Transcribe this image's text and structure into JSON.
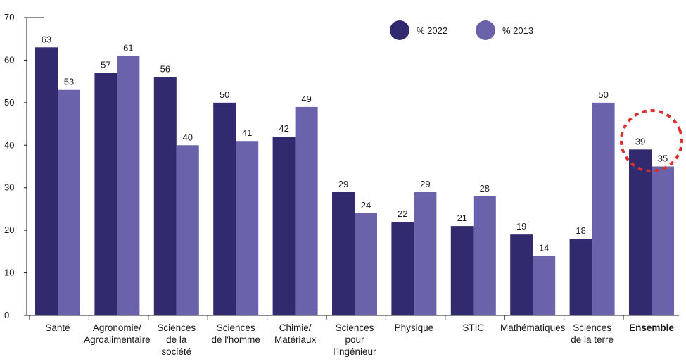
{
  "chart_data": {
    "type": "bar",
    "title": "",
    "xlabel": "",
    "ylabel": "",
    "ylim": [
      0,
      70
    ],
    "yticks": [
      0,
      10,
      20,
      30,
      40,
      50,
      60,
      70
    ],
    "legend_position": "top-right",
    "grid": false,
    "categories": [
      {
        "lines": [
          "Santé"
        ],
        "bold": false
      },
      {
        "lines": [
          "Agronomie/",
          "Agroalimentaire"
        ],
        "bold": false
      },
      {
        "lines": [
          "Sciences",
          "de la",
          "société"
        ],
        "bold": false
      },
      {
        "lines": [
          "Sciences",
          "de l'homme"
        ],
        "bold": false
      },
      {
        "lines": [
          "Chimie/",
          "Matériaux"
        ],
        "bold": false
      },
      {
        "lines": [
          "Sciences",
          "pour",
          "l'ingénieur"
        ],
        "bold": false
      },
      {
        "lines": [
          "Physique"
        ],
        "bold": false
      },
      {
        "lines": [
          "STIC"
        ],
        "bold": false
      },
      {
        "lines": [
          "Mathématiques"
        ],
        "bold": false
      },
      {
        "lines": [
          "Sciences",
          "de la terre"
        ],
        "bold": false
      },
      {
        "lines": [
          "Ensemble"
        ],
        "bold": true
      }
    ],
    "series": [
      {
        "name": "% 2022",
        "color": "#312a6f",
        "values": [
          63,
          57,
          56,
          50,
          42,
          29,
          22,
          21,
          19,
          18,
          39
        ]
      },
      {
        "name": "% 2013",
        "color": "#6a63ab",
        "values": [
          53,
          61,
          40,
          41,
          49,
          24,
          29,
          28,
          14,
          50,
          35
        ]
      }
    ],
    "highlight": {
      "category_index": 10,
      "style": "dashed-circle",
      "color": "#d8312a"
    }
  }
}
